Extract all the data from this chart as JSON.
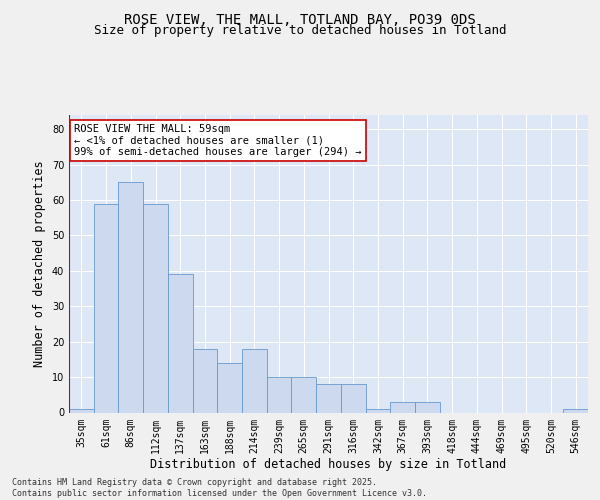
{
  "title": "ROSE VIEW, THE MALL, TOTLAND BAY, PO39 0DS",
  "subtitle": "Size of property relative to detached houses in Totland",
  "xlabel": "Distribution of detached houses by size in Totland",
  "ylabel": "Number of detached properties",
  "categories": [
    "35sqm",
    "61sqm",
    "86sqm",
    "112sqm",
    "137sqm",
    "163sqm",
    "188sqm",
    "214sqm",
    "239sqm",
    "265sqm",
    "291sqm",
    "316sqm",
    "342sqm",
    "367sqm",
    "393sqm",
    "418sqm",
    "444sqm",
    "469sqm",
    "495sqm",
    "520sqm",
    "546sqm"
  ],
  "values": [
    1,
    59,
    65,
    59,
    39,
    18,
    14,
    18,
    10,
    10,
    8,
    8,
    1,
    3,
    3,
    0,
    0,
    0,
    0,
    0,
    1
  ],
  "bar_color": "#ccd9ee",
  "bar_edge_color": "#6699cc",
  "background_color": "#dde7f5",
  "grid_color": "#ffffff",
  "marker_line_color": "#cc0000",
  "annotation_line1": "ROSE VIEW THE MALL: 59sqm",
  "annotation_line2": "← <1% of detached houses are smaller (1)",
  "annotation_line3": "99% of semi-detached houses are larger (294) →",
  "ylim": [
    0,
    84
  ],
  "yticks": [
    0,
    10,
    20,
    30,
    40,
    50,
    60,
    70,
    80
  ],
  "footer": "Contains HM Land Registry data © Crown copyright and database right 2025.\nContains public sector information licensed under the Open Government Licence v3.0.",
  "title_fontsize": 10,
  "subtitle_fontsize": 9,
  "axis_label_fontsize": 8.5,
  "tick_fontsize": 7,
  "annotation_fontsize": 7.5,
  "footer_fontsize": 6
}
